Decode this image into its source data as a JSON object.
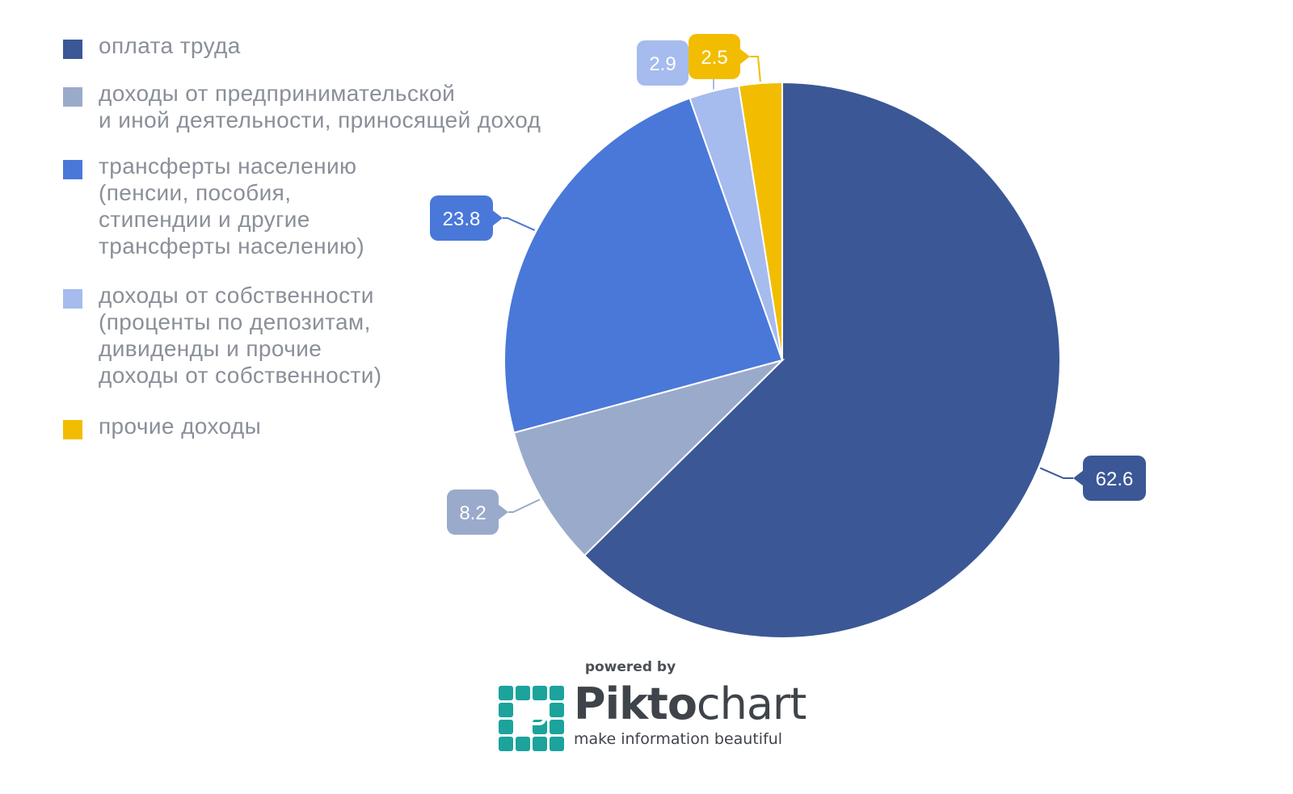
{
  "chart_data": {
    "type": "pie",
    "series": [
      {
        "name": "оплата труда",
        "value": 62.6,
        "color": "#3b5796",
        "label": "62.6"
      },
      {
        "name": "доходы от предпринимательской\nи иной деятельности, приносящей доход",
        "value": 8.2,
        "color": "#9aaacb",
        "label": "8.2"
      },
      {
        "name": "трансферты населению\n(пенсии, пособия,\nстипендии и другие\nтрансферты населению)",
        "value": 23.8,
        "color": "#4a78d9",
        "label": "23.8"
      },
      {
        "name": "доходы от собственности\n(проценты по депозитам,\nдивиденды и прочие\nдоходы от собственности)",
        "value": 2.9,
        "color": "#a6bbee",
        "label": "2.9"
      },
      {
        "name": "прочие доходы",
        "value": 2.5,
        "color": "#f2bd00",
        "label": "2.5"
      }
    ],
    "slice_order": [
      "оплата труда",
      "доходы от предпринимательской\nи иной деятельности, приносящей доход",
      "трансферты населению\n(пенсии, пособия,\nстипендии и другие\nтрансферты населению)",
      "доходы от собственности\n(проценты по депозитам,\nдивиденды и прочие\nдоходы от собственности)",
      "прочие доходы"
    ],
    "legend_position": "left",
    "start_angle": "12 o'clock, clockwise"
  },
  "branding": {
    "powered_by": "powered by",
    "name_bold": "Pikto",
    "name_light": "chart",
    "tagline": "make information beautiful",
    "mark_color": "#1ba39c"
  }
}
